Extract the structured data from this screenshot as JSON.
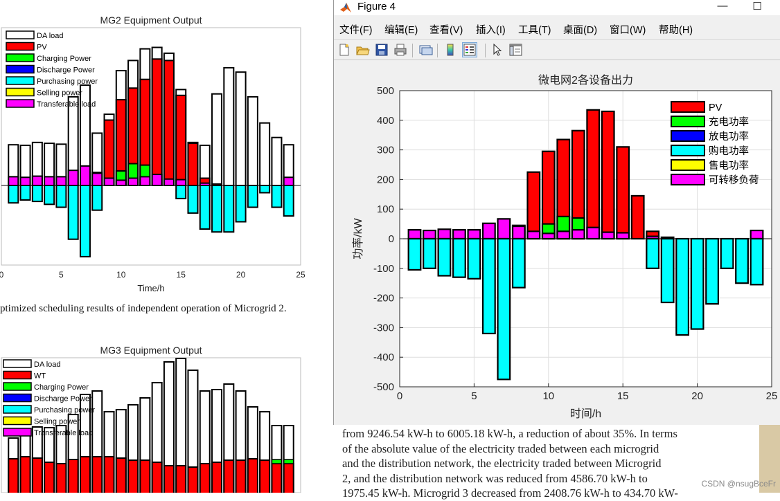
{
  "background_doc": {
    "chart1": {
      "title": "MG2 Equipment Output",
      "xlabel": "Time/h",
      "x_ticks": [
        "0",
        "5",
        "10",
        "15",
        "20",
        "25"
      ],
      "legend": [
        "DA load",
        "PV",
        "Charging Power",
        "Discharge Power",
        "Purchasing power",
        "Selling power",
        "Transferable load"
      ]
    },
    "caption": "ptimized scheduling results of independent operation of Microgrid 2.",
    "chart2": {
      "title": "MG3 Equipment Output",
      "legend": [
        "DA load",
        "WT",
        "Charging Power",
        "Discharge Power",
        "Purchasing power",
        "Selling power",
        "Transferable load"
      ]
    },
    "paragraph_lines": [
      "from 9246.54 kW-h to 6005.18 kW-h, a reduction of about 35%. In terms",
      "of the absolute value of the electricity traded between each microgrid",
      "and the distribution network, the electricity traded between Microgrid",
      "2, and the distribution network was reduced from 4586.70 kW-h to",
      "1975.45 kW-h. Microgrid 3 decreased from 2408.76 kW-h to 434.70 kW-"
    ],
    "watermark": "CSDN @nsugBceFr"
  },
  "window": {
    "title": "Figure 4",
    "minimize_glyph": "—",
    "maximize_glyph": "☐",
    "menu": [
      "文件(F)",
      "编辑(E)",
      "查看(V)",
      "插入(I)",
      "工具(T)",
      "桌面(D)",
      "窗口(W)",
      "帮助(H)"
    ],
    "toolbar_icons": [
      "new-figure-icon",
      "open-file-icon",
      "save-icon",
      "print-icon",
      "link-plot-icon",
      "insert-colorbar-icon",
      "insert-legend-icon",
      "edit-plot-icon",
      "property-inspector-icon"
    ]
  },
  "chart_data": {
    "type": "bar",
    "title": "微电网2各设备出力",
    "xlabel": "时间/h",
    "ylabel": "功率/kW",
    "xlim": [
      0,
      25
    ],
    "ylim": [
      -500,
      500
    ],
    "x_ticks": [
      0,
      5,
      10,
      15,
      20,
      25
    ],
    "y_ticks": [
      -500,
      -400,
      -300,
      -200,
      -100,
      0,
      100,
      200,
      300,
      400,
      500
    ],
    "grid": true,
    "legend_position": "top-right",
    "x": [
      1,
      2,
      3,
      4,
      5,
      6,
      7,
      8,
      9,
      10,
      11,
      12,
      13,
      14,
      15,
      16,
      17,
      18,
      19,
      20,
      21,
      22,
      23,
      24
    ],
    "series": [
      {
        "name": "PV",
        "color": "#ff0000",
        "values": [
          0,
          0,
          0,
          0,
          0,
          0,
          0,
          45,
          225,
          295,
          335,
          365,
          435,
          430,
          310,
          145,
          25,
          5,
          0,
          0,
          0,
          0,
          0,
          0
        ]
      },
      {
        "name": "充电功率",
        "color": "#00ff00",
        "values": [
          0,
          0,
          0,
          0,
          0,
          0,
          0,
          0,
          0,
          50,
          75,
          70,
          0,
          0,
          0,
          0,
          0,
          0,
          0,
          0,
          0,
          0,
          0,
          0
        ]
      },
      {
        "name": "放电功率",
        "color": "#0000ff",
        "values": [
          0,
          0,
          0,
          0,
          0,
          0,
          0,
          0,
          0,
          0,
          0,
          0,
          0,
          0,
          0,
          0,
          0,
          0,
          0,
          0,
          0,
          0,
          0,
          0
        ]
      },
      {
        "name": "购电功率",
        "color": "#00ffff",
        "values": [
          -105,
          -100,
          -125,
          -130,
          -135,
          -320,
          -475,
          -165,
          0,
          0,
          0,
          0,
          0,
          0,
          0,
          0,
          -100,
          -215,
          -325,
          -305,
          -220,
          -100,
          -150,
          -155
        ]
      },
      {
        "name": "售电功率",
        "color": "#ffff00",
        "values": [
          0,
          0,
          0,
          0,
          0,
          0,
          0,
          0,
          0,
          0,
          0,
          0,
          0,
          0,
          0,
          0,
          0,
          0,
          0,
          0,
          0,
          0,
          0,
          0
        ]
      },
      {
        "name": "可转移负荷",
        "color": "#ff00ff",
        "values": [
          30,
          28,
          32,
          30,
          30,
          52,
          67,
          42,
          25,
          18,
          25,
          30,
          38,
          22,
          20,
          0,
          8,
          0,
          0,
          0,
          0,
          0,
          0,
          28
        ]
      }
    ]
  }
}
